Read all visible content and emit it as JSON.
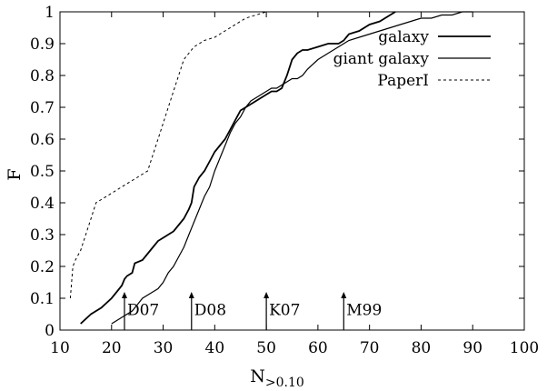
{
  "chart_data": {
    "type": "line",
    "xlabel": "N",
    "xlabel_sub": ">0.10",
    "ylabel": "F",
    "xlim": [
      10,
      100
    ],
    "ylim": [
      0,
      1
    ],
    "xticks": [
      "10",
      "20",
      "30",
      "40",
      "50",
      "60",
      "70",
      "80",
      "90",
      "100"
    ],
    "yticks": [
      "0",
      "0.1",
      "0.2",
      "0.3",
      "0.4",
      "0.5",
      "0.6",
      "0.7",
      "0.8",
      "0.9",
      "1"
    ],
    "grid": false,
    "legend_position": "top-right",
    "series": [
      {
        "name": "galaxy",
        "style": "solid-thick",
        "x": [
          14,
          16,
          18,
          20,
          22,
          22.5,
          23,
          24,
          24.5,
          26,
          27,
          28,
          29,
          30,
          31,
          32,
          33,
          34,
          35,
          35.5,
          36,
          37,
          38,
          39,
          40,
          41,
          42,
          43,
          44,
          45,
          46,
          47,
          48,
          49,
          50,
          51,
          52,
          53,
          54,
          55,
          56,
          57,
          58,
          60,
          62,
          64,
          65,
          66,
          68,
          70,
          72,
          74,
          75
        ],
        "y": [
          0.02,
          0.05,
          0.07,
          0.1,
          0.14,
          0.16,
          0.17,
          0.18,
          0.21,
          0.22,
          0.24,
          0.26,
          0.28,
          0.29,
          0.3,
          0.31,
          0.33,
          0.35,
          0.38,
          0.4,
          0.45,
          0.48,
          0.5,
          0.53,
          0.56,
          0.58,
          0.6,
          0.63,
          0.66,
          0.69,
          0.7,
          0.71,
          0.72,
          0.73,
          0.74,
          0.75,
          0.75,
          0.76,
          0.8,
          0.85,
          0.87,
          0.88,
          0.88,
          0.89,
          0.9,
          0.9,
          0.91,
          0.93,
          0.94,
          0.96,
          0.97,
          0.99,
          1.0
        ]
      },
      {
        "name": "giant galaxy",
        "style": "solid",
        "x": [
          20,
          22,
          24,
          25,
          26,
          28,
          29,
          30,
          31,
          32,
          33,
          34,
          35,
          36,
          37,
          38,
          39,
          40,
          41,
          42,
          43,
          44,
          45,
          46,
          47,
          48,
          49,
          50,
          51,
          52,
          53,
          54,
          55,
          56,
          57,
          58,
          60,
          62,
          64,
          65,
          66,
          68,
          70,
          72,
          74,
          76,
          78,
          80,
          82,
          84,
          86,
          88,
          90
        ],
        "y": [
          0.02,
          0.04,
          0.06,
          0.08,
          0.1,
          0.12,
          0.13,
          0.15,
          0.18,
          0.2,
          0.23,
          0.26,
          0.3,
          0.34,
          0.38,
          0.42,
          0.45,
          0.5,
          0.54,
          0.58,
          0.62,
          0.65,
          0.67,
          0.7,
          0.72,
          0.73,
          0.74,
          0.75,
          0.76,
          0.76,
          0.77,
          0.78,
          0.79,
          0.79,
          0.8,
          0.82,
          0.85,
          0.87,
          0.89,
          0.9,
          0.91,
          0.92,
          0.93,
          0.94,
          0.95,
          0.96,
          0.97,
          0.98,
          0.98,
          0.99,
          0.99,
          1.0,
          1.0
        ]
      },
      {
        "name": "PaperI",
        "style": "dashed",
        "x": [
          12,
          12.5,
          13,
          14,
          15,
          16,
          17,
          18,
          20,
          22,
          24,
          25,
          26,
          27,
          28,
          29,
          30,
          31,
          32,
          33,
          34,
          35,
          36,
          37,
          38,
          40,
          42,
          44,
          46,
          48,
          50
        ],
        "y": [
          0.1,
          0.2,
          0.22,
          0.25,
          0.3,
          0.35,
          0.4,
          0.41,
          0.43,
          0.45,
          0.47,
          0.48,
          0.49,
          0.5,
          0.55,
          0.6,
          0.65,
          0.7,
          0.75,
          0.8,
          0.85,
          0.87,
          0.89,
          0.9,
          0.91,
          0.92,
          0.94,
          0.96,
          0.98,
          0.99,
          1.0
        ]
      }
    ],
    "markers": [
      {
        "label": "D07",
        "x": 22.5,
        "y": 0.12
      },
      {
        "label": "D08",
        "x": 35.5,
        "y": 0.12
      },
      {
        "label": "K07",
        "x": 50,
        "y": 0.12
      },
      {
        "label": "M99",
        "x": 65,
        "y": 0.12
      }
    ]
  }
}
